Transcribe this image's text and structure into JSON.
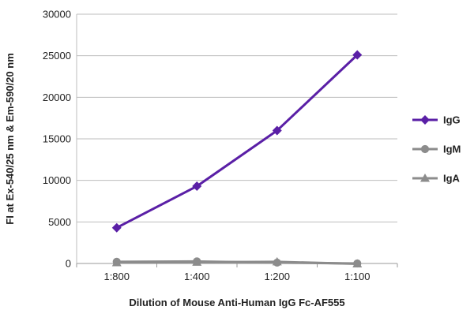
{
  "chart_data": {
    "type": "line",
    "categories": [
      "1:800",
      "1:400",
      "1:200",
      "1:100"
    ],
    "series": [
      {
        "name": "IgG",
        "values": [
          4300,
          9300,
          16000,
          25100
        ],
        "color": "#5a1fa6",
        "marker": "diamond"
      },
      {
        "name": "IgM",
        "values": [
          200,
          250,
          100,
          0
        ],
        "color": "#8c8c8c",
        "marker": "circle"
      },
      {
        "name": "IgA",
        "values": [
          100,
          150,
          200,
          -50
        ],
        "color": "#8c8c8c",
        "marker": "triangle"
      }
    ],
    "xlabel": "Dilution of Mouse Anti-Human IgG Fc-AF555",
    "ylabel": "FI at Ex-540/25 nm & Em-590/20 nm",
    "ylim": [
      0,
      30000
    ],
    "yticks": [
      0,
      5000,
      10000,
      15000,
      20000,
      25000,
      30000
    ],
    "grid": "horizontal",
    "legend": "right"
  }
}
